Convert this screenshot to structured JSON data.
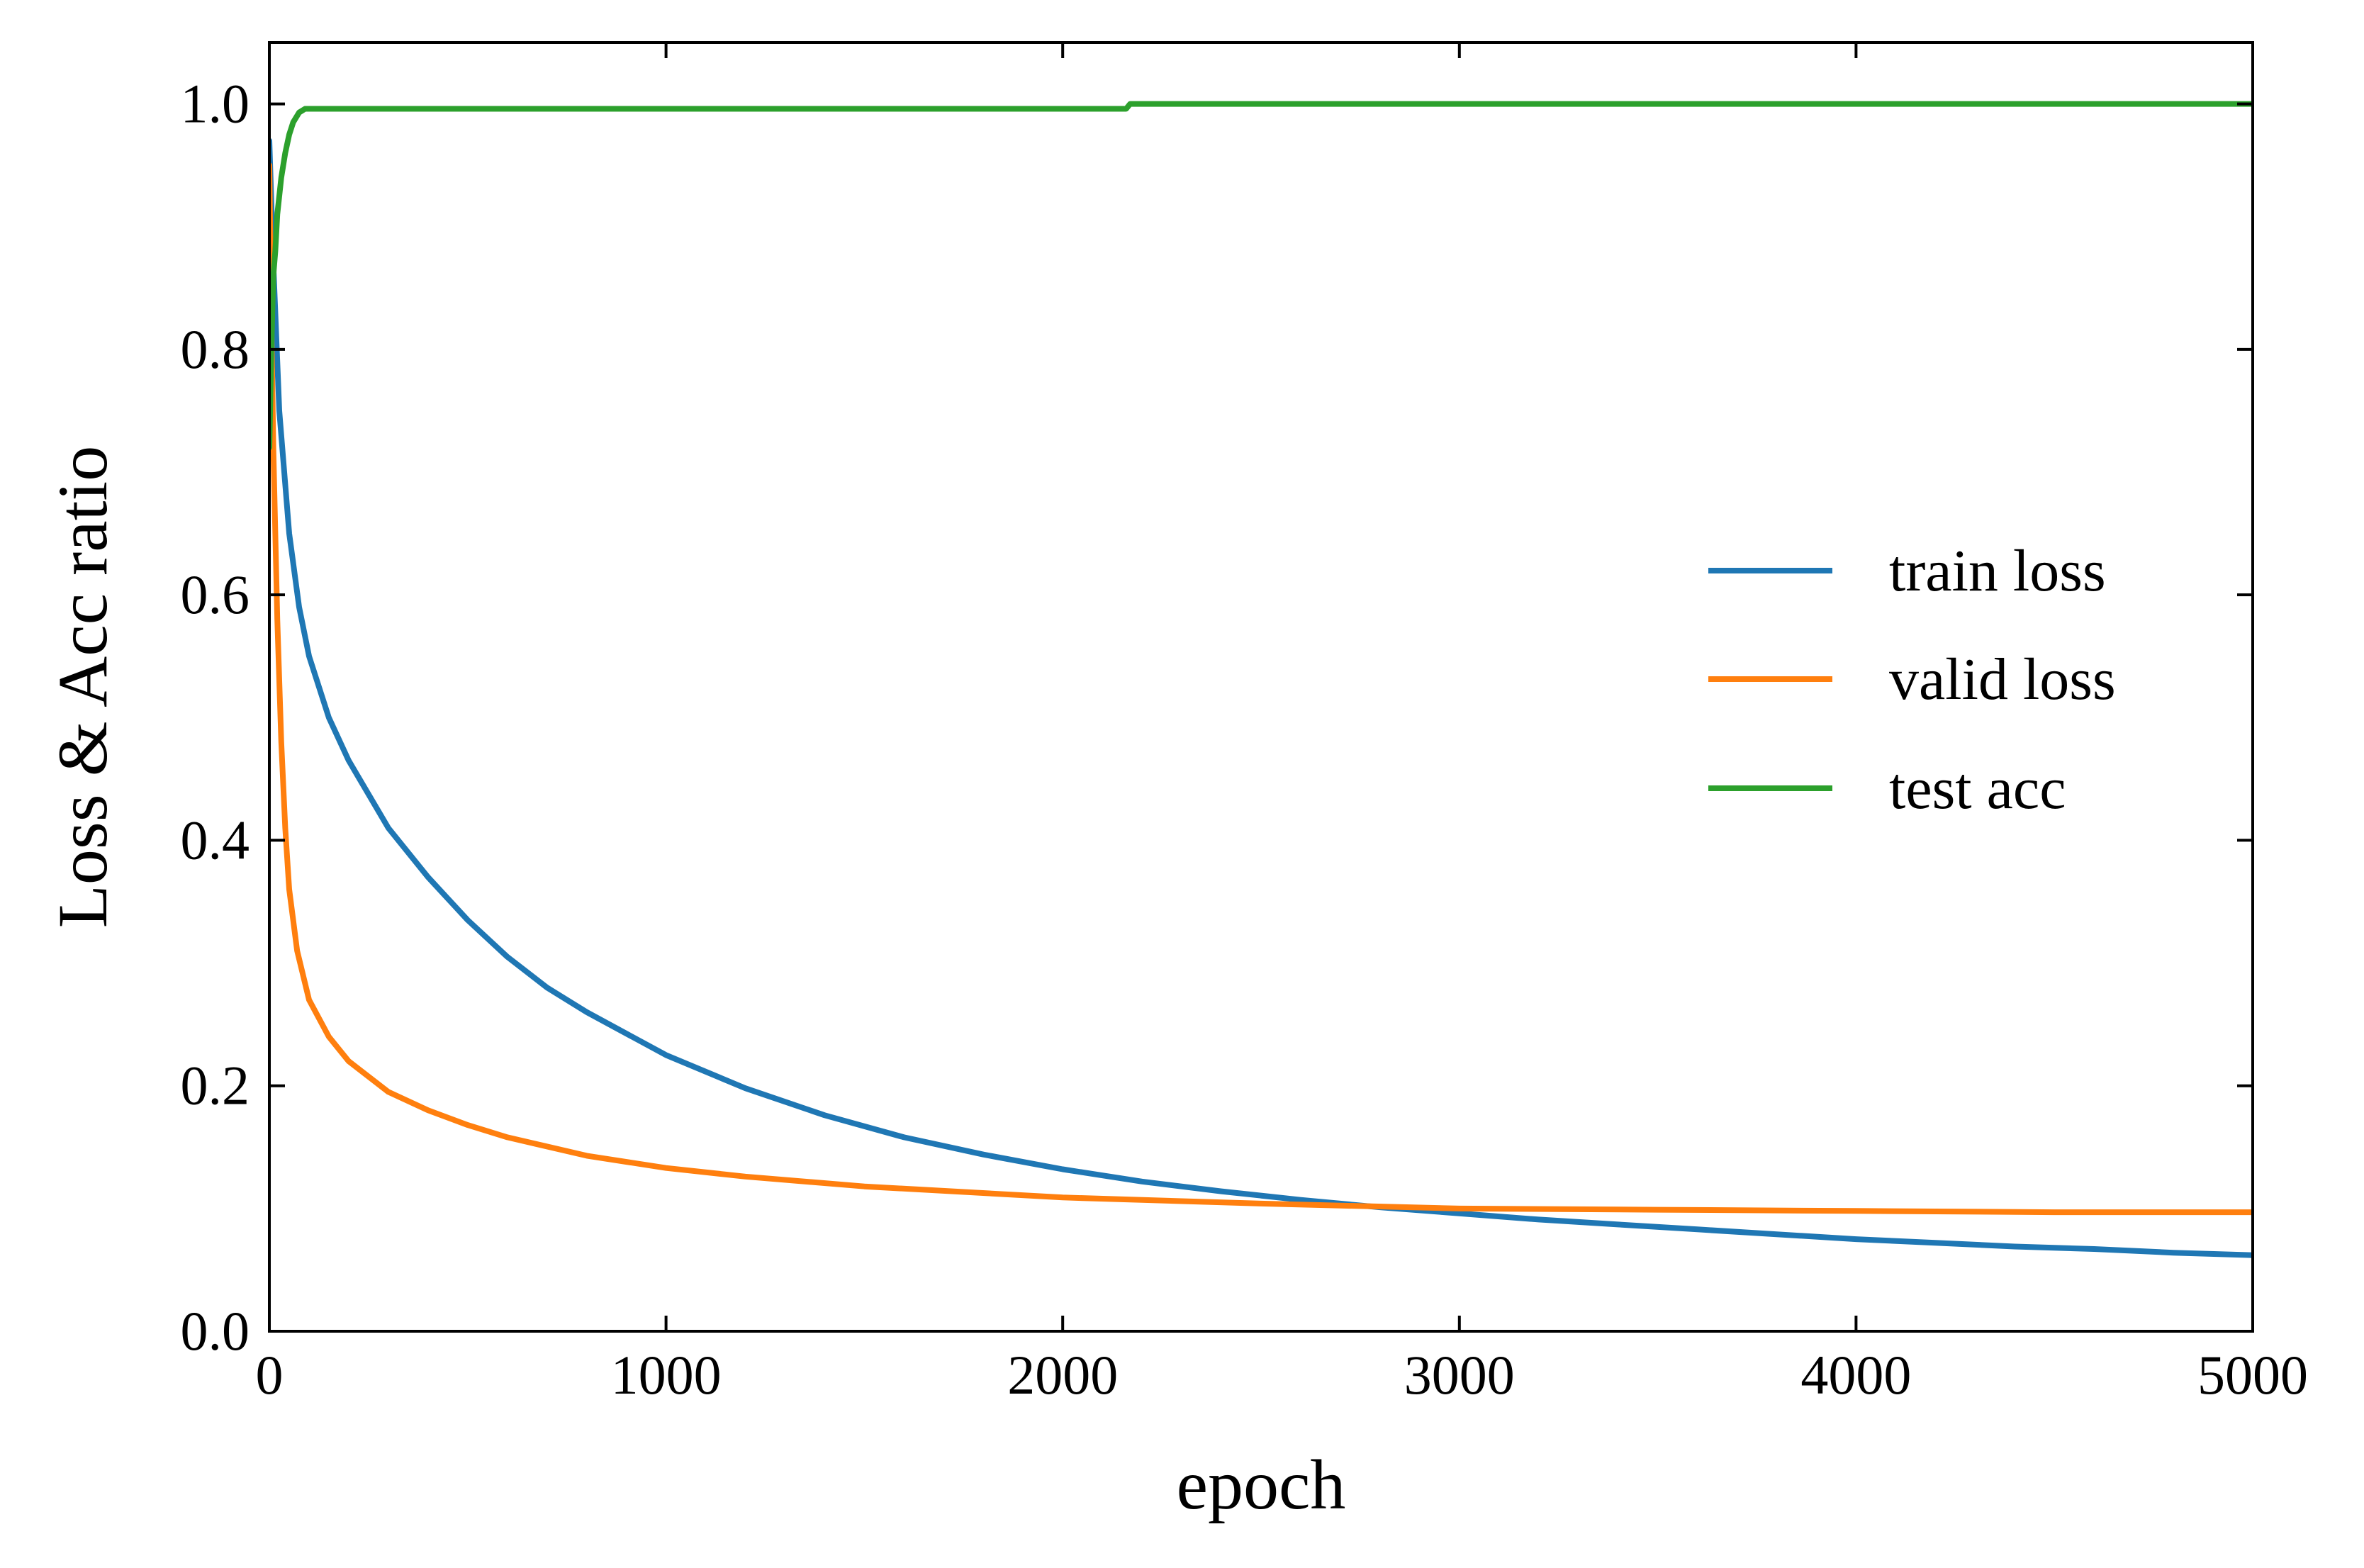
{
  "chart_data": {
    "type": "line",
    "title": "",
    "xlabel": "epoch",
    "ylabel": "Loss & Acc ratio",
    "xlim": [
      0,
      5000
    ],
    "ylim": [
      0,
      1.05
    ],
    "xticks": [
      0,
      1000,
      2000,
      3000,
      4000,
      5000
    ],
    "xtick_labels": [
      "0",
      "1000",
      "2000",
      "3000",
      "4000",
      "5000"
    ],
    "yticks": [
      0,
      0.2,
      0.4,
      0.6,
      0.8,
      1.0
    ],
    "ytick_labels": [
      "0.0",
      "0.2",
      "0.4",
      "0.6",
      "0.8",
      "1.0"
    ],
    "grid": false,
    "legend_position": "center-right",
    "series": [
      {
        "name": "train loss",
        "color": "#1f77b4",
        "x": [
          0,
          10,
          25,
          50,
          75,
          100,
          150,
          200,
          300,
          400,
          500,
          600,
          700,
          800,
          1000,
          1200,
          1400,
          1600,
          1800,
          2000,
          2200,
          2400,
          2600,
          2800,
          3000,
          3200,
          3400,
          3600,
          3800,
          4000,
          4200,
          4400,
          4600,
          4800,
          5000
        ],
        "values": [
          0.97,
          0.87,
          0.75,
          0.65,
          0.59,
          0.55,
          0.5,
          0.465,
          0.41,
          0.37,
          0.335,
          0.305,
          0.28,
          0.26,
          0.225,
          0.198,
          0.176,
          0.158,
          0.144,
          0.132,
          0.122,
          0.114,
          0.107,
          0.101,
          0.096,
          0.091,
          0.087,
          0.083,
          0.079,
          0.075,
          0.072,
          0.069,
          0.067,
          0.064,
          0.062
        ]
      },
      {
        "name": "valid loss",
        "color": "#ff7f0e",
        "x": [
          0,
          5,
          10,
          20,
          30,
          40,
          50,
          70,
          100,
          150,
          200,
          300,
          400,
          500,
          600,
          800,
          1000,
          1200,
          1500,
          2000,
          2500,
          3000,
          3500,
          4000,
          4500,
          5000
        ],
        "values": [
          0.95,
          0.82,
          0.72,
          0.58,
          0.48,
          0.41,
          0.36,
          0.31,
          0.27,
          0.24,
          0.22,
          0.195,
          0.18,
          0.168,
          0.158,
          0.143,
          0.133,
          0.126,
          0.118,
          0.109,
          0.104,
          0.1,
          0.099,
          0.098,
          0.097,
          0.097
        ]
      },
      {
        "name": "test acc",
        "color": "#2ca02c",
        "x": [
          0,
          5,
          10,
          15,
          20,
          30,
          40,
          50,
          60,
          75,
          90,
          100,
          150,
          500,
          1000,
          2000,
          2160,
          2170,
          2500,
          3000,
          4000,
          5000
        ],
        "values": [
          0.72,
          0.8,
          0.86,
          0.88,
          0.91,
          0.94,
          0.96,
          0.975,
          0.985,
          0.993,
          0.996,
          0.996,
          0.996,
          0.996,
          0.996,
          0.996,
          0.996,
          1.0,
          1.0,
          1.0,
          1.0,
          1.0
        ]
      }
    ]
  }
}
